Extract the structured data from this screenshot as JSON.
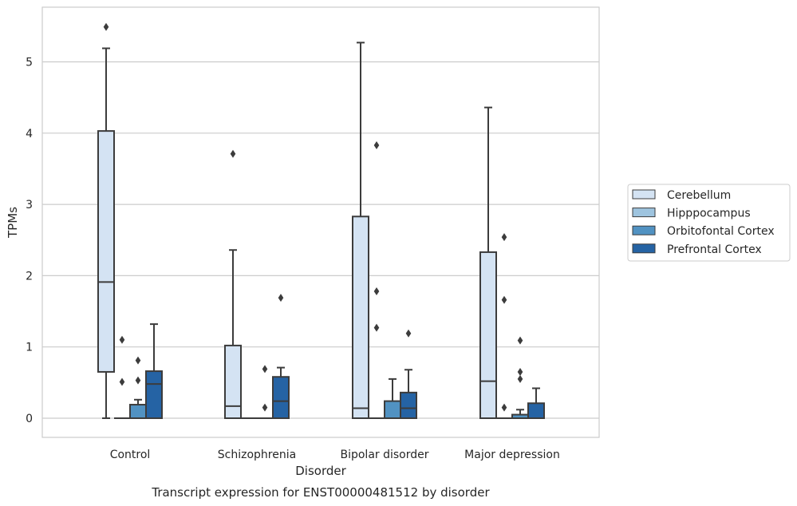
{
  "chart_data": {
    "type": "boxplot",
    "caption": "Transcript expression for ENST00000481512 by disorder",
    "xlabel": "Disorder",
    "ylabel": "TPMs",
    "ylim": [
      -0.27,
      5.77
    ],
    "yticks": [
      0,
      1,
      2,
      3,
      4,
      5
    ],
    "grid": "horizontal",
    "legend_position": "right",
    "categories": [
      "Control",
      "Schizophrenia",
      "Bipolar disorder",
      "Major depression"
    ],
    "series": [
      {
        "name": "Cerebellum",
        "color": "#d4e3f3",
        "boxes": [
          {
            "whisker_low": 0,
            "q1": 0.65,
            "median": 1.91,
            "q3": 4.03,
            "whisker_high": 5.19,
            "outliers": [
              5.49
            ]
          },
          {
            "whisker_low": 0,
            "q1": 0,
            "median": 0.17,
            "q3": 1.02,
            "whisker_high": 2.36,
            "outliers": [
              3.71
            ]
          },
          {
            "whisker_low": 0,
            "q1": 0,
            "median": 0.14,
            "q3": 2.83,
            "whisker_high": 5.27,
            "outliers": []
          },
          {
            "whisker_low": 0,
            "q1": 0,
            "median": 0.52,
            "q3": 2.33,
            "whisker_high": 4.36,
            "outliers": []
          }
        ]
      },
      {
        "name": "Hipppocampus",
        "color": "#9ec4df",
        "boxes": [
          {
            "whisker_low": 0,
            "q1": 0,
            "median": 0,
            "q3": 0,
            "whisker_high": 0,
            "outliers": [
              0.51,
              1.1
            ]
          },
          {
            "whisker_low": 0,
            "q1": 0,
            "median": 0,
            "q3": 0,
            "whisker_high": 0,
            "outliers": []
          },
          {
            "whisker_low": 0,
            "q1": 0,
            "median": 0,
            "q3": 0,
            "whisker_high": 0,
            "outliers": [
              1.27,
              1.78,
              3.83
            ]
          },
          {
            "whisker_low": 0,
            "q1": 0,
            "median": 0,
            "q3": 0,
            "whisker_high": 0,
            "outliers": [
              0.15,
              1.66,
              2.54
            ]
          }
        ]
      },
      {
        "name": "Orbitofontal Cortex",
        "color": "#5192c2",
        "boxes": [
          {
            "whisker_low": 0,
            "q1": 0,
            "median": 0,
            "q3": 0.19,
            "whisker_high": 0.26,
            "outliers": [
              0.53,
              0.81
            ]
          },
          {
            "whisker_low": 0,
            "q1": 0,
            "median": 0,
            "q3": 0,
            "whisker_high": 0,
            "outliers": [
              0.15,
              0.69
            ]
          },
          {
            "whisker_low": 0,
            "q1": 0,
            "median": 0,
            "q3": 0.24,
            "whisker_high": 0.55,
            "outliers": []
          },
          {
            "whisker_low": 0,
            "q1": 0,
            "median": 0,
            "q3": 0.05,
            "whisker_high": 0.12,
            "outliers": [
              0.55,
              0.65,
              1.09
            ]
          }
        ]
      },
      {
        "name": "Prefrontal Cortex",
        "color": "#2563a4",
        "boxes": [
          {
            "whisker_low": 0,
            "q1": 0,
            "median": 0.48,
            "q3": 0.66,
            "whisker_high": 1.32,
            "outliers": []
          },
          {
            "whisker_low": 0,
            "q1": 0,
            "median": 0.24,
            "q3": 0.58,
            "whisker_high": 0.71,
            "outliers": [
              1.69
            ]
          },
          {
            "whisker_low": 0,
            "q1": 0,
            "median": 0.14,
            "q3": 0.36,
            "whisker_high": 0.68,
            "outliers": [
              1.19
            ]
          },
          {
            "whisker_low": 0,
            "q1": 0,
            "median": 0,
            "q3": 0.21,
            "whisker_high": 0.42,
            "outliers": []
          }
        ]
      }
    ]
  }
}
